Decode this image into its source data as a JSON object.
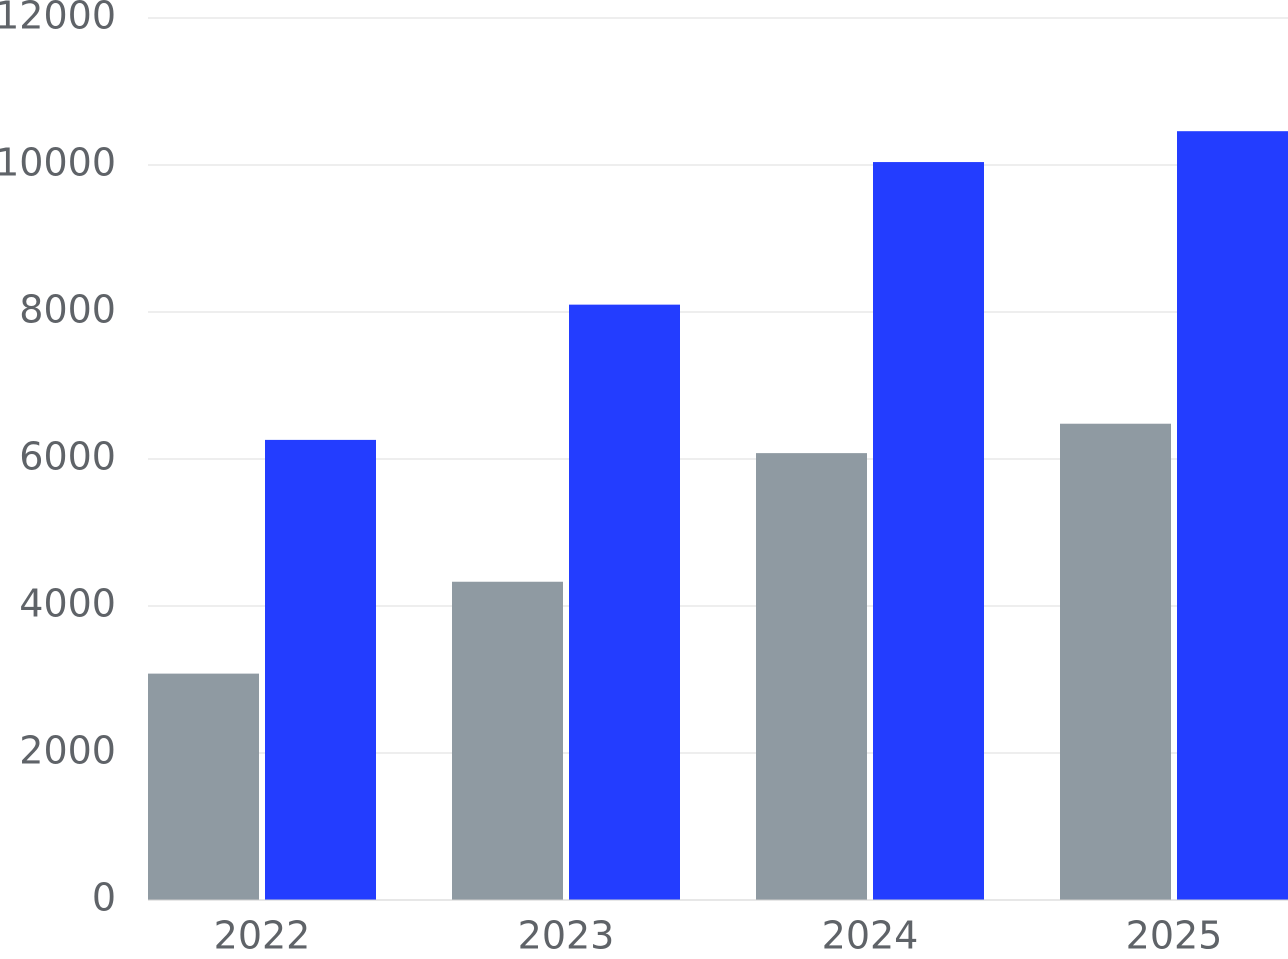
{
  "chart_data": {
    "type": "bar",
    "categories": [
      "2022",
      "2023",
      "2024",
      "2025"
    ],
    "series": [
      {
        "color": "#8f9aa2",
        "values": [
          3080,
          4330,
          6080,
          6480
        ]
      },
      {
        "color": "#233dff",
        "values": [
          6260,
          8100,
          10040,
          10460
        ]
      }
    ],
    "ylim": [
      0,
      12000
    ],
    "yticks": [
      0,
      2000,
      4000,
      6000,
      8000,
      10000,
      12000
    ],
    "grid": true
  }
}
